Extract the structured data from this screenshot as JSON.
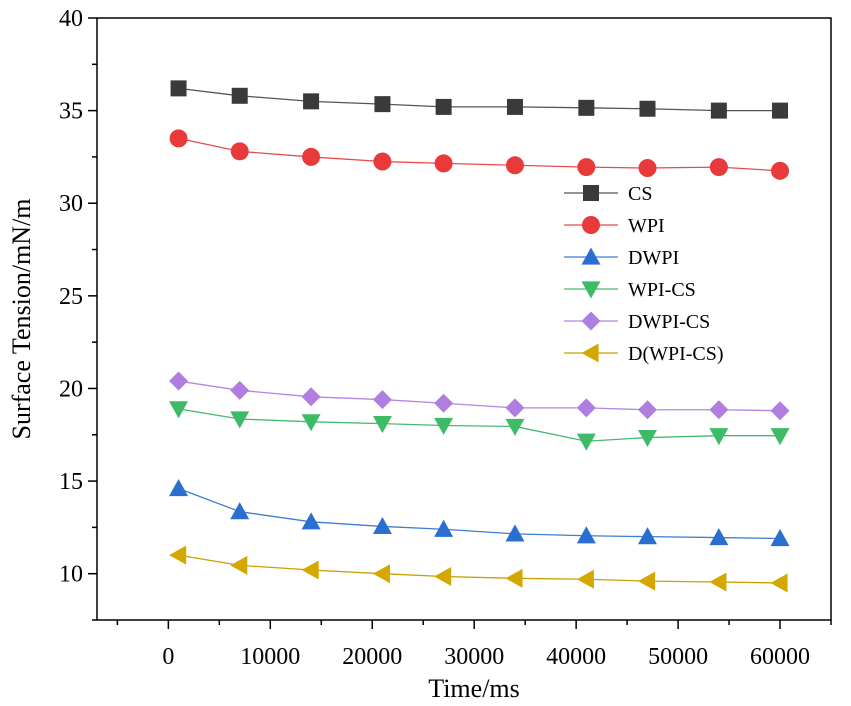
{
  "chart_data": {
    "type": "line",
    "title": "",
    "xlabel": "Time/ms",
    "ylabel": "Surface Tension/mN/m",
    "xlim": [
      -7000,
      65000
    ],
    "ylim": [
      7.5,
      40
    ],
    "x_ticks": [
      0,
      10000,
      20000,
      30000,
      40000,
      50000,
      60000
    ],
    "x_minor_step": 5000,
    "y_ticks": [
      10,
      15,
      20,
      25,
      30,
      35,
      40
    ],
    "y_minor_step": 2.5,
    "x_tick_labels": [
      "0",
      "10000",
      "20000",
      "30000",
      "40000",
      "50000",
      "60000"
    ],
    "y_tick_labels": [
      "10",
      "15",
      "20",
      "25",
      "30",
      "35",
      "40"
    ],
    "grid": false,
    "legend_position": "center-right",
    "x": [
      1000,
      7000,
      14000,
      21000,
      27000,
      34000,
      41000,
      47000,
      54000,
      60000
    ],
    "series": [
      {
        "name": "CS",
        "marker": "square",
        "color": "#555555",
        "marker_color": "#3a3a3a",
        "values": [
          36.2,
          35.8,
          35.5,
          35.35,
          35.2,
          35.2,
          35.15,
          35.1,
          35.0,
          35.0
        ]
      },
      {
        "name": "WPI",
        "marker": "circle",
        "color": "#e84a4a",
        "marker_color": "#e83a3a",
        "values": [
          33.5,
          32.8,
          32.5,
          32.25,
          32.15,
          32.05,
          31.95,
          31.9,
          31.95,
          31.75
        ]
      },
      {
        "name": "DWPI",
        "marker": "triangle-up",
        "color": "#3c7fd0",
        "marker_color": "#2a6fd0",
        "values": [
          14.6,
          13.35,
          12.8,
          12.55,
          12.4,
          12.15,
          12.05,
          12.0,
          11.95,
          11.9
        ]
      },
      {
        "name": "WPI-CS",
        "marker": "triangle-down",
        "color": "#48b86e",
        "marker_color": "#3dbb66",
        "values": [
          18.9,
          18.35,
          18.2,
          18.1,
          18.0,
          17.95,
          17.15,
          17.35,
          17.45,
          17.45
        ]
      },
      {
        "name": "DWPI-CS",
        "marker": "diamond",
        "color": "#b585e0",
        "marker_color": "#b07ee0",
        "values": [
          20.4,
          19.9,
          19.55,
          19.4,
          19.2,
          18.95,
          18.95,
          18.85,
          18.85,
          18.8
        ]
      },
      {
        "name": "D(WPI-CS)",
        "marker": "triangle-left",
        "color": "#c9a000",
        "marker_color": "#d4a800",
        "values": [
          11.0,
          10.45,
          10.2,
          10.0,
          9.85,
          9.75,
          9.7,
          9.6,
          9.55,
          9.5
        ]
      }
    ]
  }
}
